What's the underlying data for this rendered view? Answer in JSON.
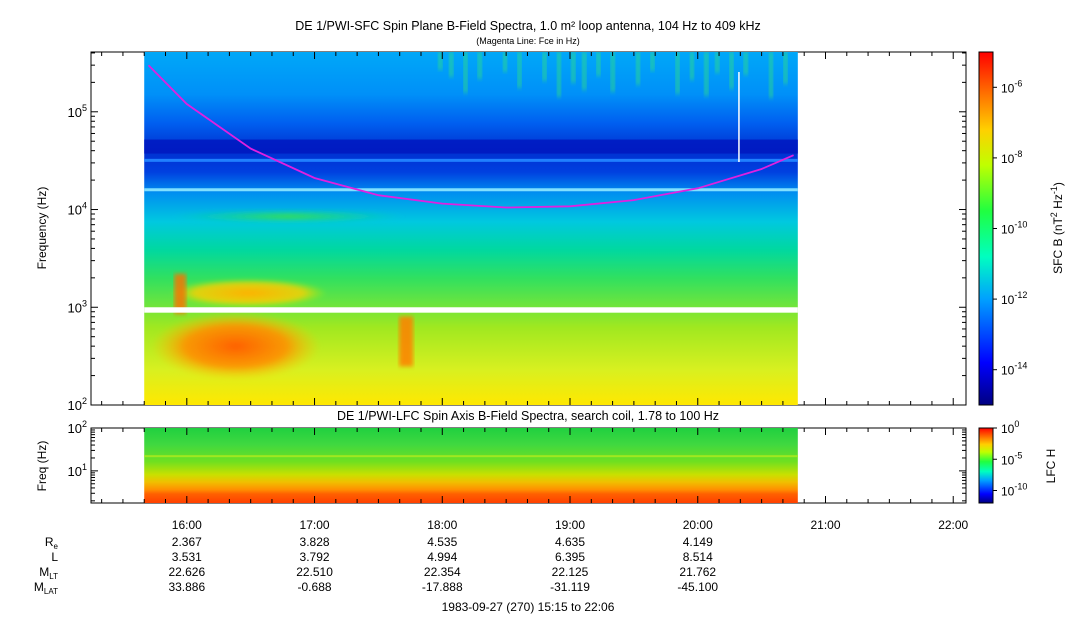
{
  "chart_data": [
    {
      "type": "heatmap",
      "title": "DE 1/PWI-SFC  Spin Plane B-Field Spectra, 1.0 m² loop antenna, 104 Hz to 409 kHz",
      "subtitle": "(Magenta Line: Fce in Hz)",
      "ylabel": "Frequency (Hz)",
      "ylim": [
        100,
        409000
      ],
      "yscale": "log",
      "yticks": [
        {
          "label": "10",
          "exp": "2",
          "value": 100
        },
        {
          "label": "10",
          "exp": "3",
          "value": 1000
        },
        {
          "label": "10",
          "exp": "4",
          "value": 10000
        },
        {
          "label": "10",
          "exp": "5",
          "value": 100000
        }
      ],
      "colorbar": {
        "label_base": "SFC B (nT",
        "label_sup1": "2",
        "label_mid": " Hz",
        "label_sup2": "-1",
        "label_end": ")",
        "scale": "log",
        "range": [
          1e-15,
          1e-05
        ],
        "ticks": [
          {
            "label": "10",
            "exp": "-6",
            "value": -6
          },
          {
            "label": "10",
            "exp": "-8",
            "value": -8
          },
          {
            "label": "10",
            "exp": "-10",
            "value": -10
          },
          {
            "label": "10",
            "exp": "-12",
            "value": -12
          },
          {
            "label": "10",
            "exp": "-14",
            "value": -14
          }
        ]
      },
      "data_time_range": [
        "15:40",
        "20:47"
      ],
      "gap_band_hz": [
        880,
        1000
      ],
      "fce_line": {
        "color": "#e020e0",
        "x": [
          "15:42",
          "16:00",
          "16:30",
          "17:00",
          "17:30",
          "18:00",
          "18:30",
          "19:00",
          "19:30",
          "20:00",
          "20:30",
          "20:45"
        ],
        "y": [
          300000,
          120000,
          42000,
          21000,
          14000,
          11500,
          10500,
          10800,
          12500,
          16500,
          26000,
          36000
        ]
      }
    },
    {
      "type": "heatmap",
      "title": "DE 1/PWI-LFC  Spin Axis B-Field Spectra, search coil, 1.78 to 100 Hz",
      "ylabel": "Freq (Hz)",
      "ylim": [
        1.78,
        100
      ],
      "yscale": "log",
      "yticks": [
        {
          "label": "10",
          "exp": "2",
          "value": 100
        },
        {
          "label": "10",
          "exp": "1",
          "value": 10
        }
      ],
      "colorbar": {
        "label": "LFC H",
        "scale": "log",
        "range": [
          1e-12,
          1
        ],
        "ticks": [
          {
            "label": "10",
            "exp": "0",
            "value": 0
          },
          {
            "label": "10",
            "exp": "-5",
            "value": -5
          },
          {
            "label": "10",
            "exp": "-10",
            "value": -10
          }
        ]
      },
      "data_time_range": [
        "15:40",
        "20:47"
      ]
    }
  ],
  "time_axis": {
    "start": "15:15",
    "end": "22:06",
    "ticks": [
      "16:00",
      "17:00",
      "18:00",
      "19:00",
      "20:00",
      "21:00",
      "22:00"
    ]
  },
  "ephemeris": {
    "rows": [
      {
        "label": "R",
        "sub": "e",
        "values": [
          "2.367",
          "3.828",
          "4.535",
          "4.635",
          "4.149"
        ]
      },
      {
        "label": "L",
        "sub": "",
        "values": [
          "3.531",
          "3.792",
          "4.994",
          "6.395",
          "8.514"
        ]
      },
      {
        "label": "M",
        "sub": "LT",
        "values": [
          "22.626",
          "22.510",
          "22.354",
          "22.125",
          "21.762"
        ]
      },
      {
        "label": "M",
        "sub": "LAT",
        "values": [
          "33.886",
          "-0.688",
          "-17.888",
          "-31.119",
          "-45.100"
        ]
      }
    ]
  },
  "footer": "1983-09-27 (270) 15:15 to 22:06"
}
